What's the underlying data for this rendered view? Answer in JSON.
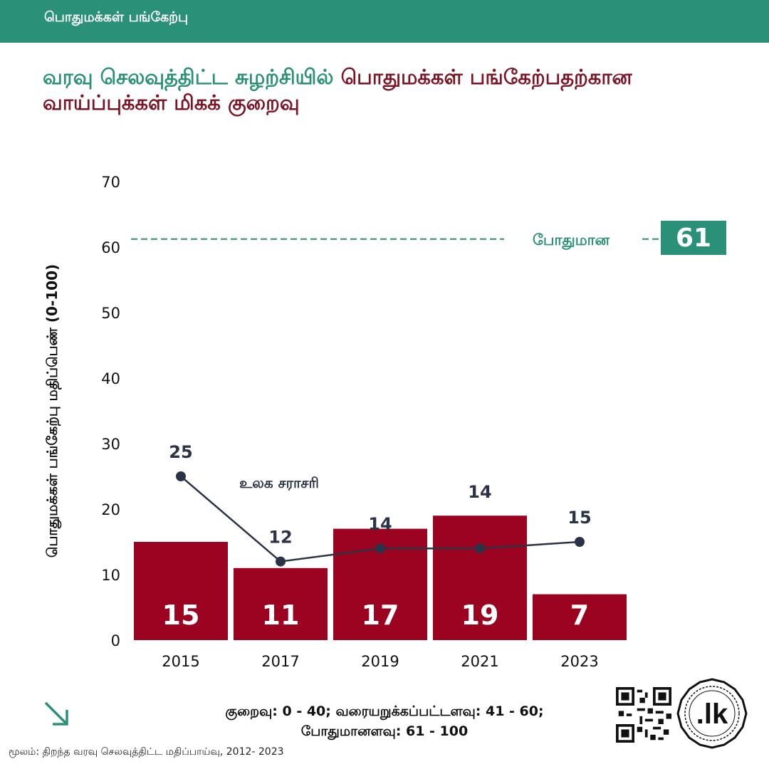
{
  "header": {
    "label": "பொதுமக்கள் பங்கேற்பு"
  },
  "title": {
    "part1": "வரவு செலவுத்திட்ட சுழற்சியில்",
    "part2": "பொதுமக்கள் பங்கேற்பதற்கான வாய்ப்புக்கள் மிகக் குறைவு"
  },
  "colors": {
    "brand_green": "#2a9077",
    "bar_red": "#9b0320",
    "line_navy": "#2b3346",
    "title_dark_red": "#7b1424"
  },
  "chart_data": {
    "type": "bar",
    "ylabel": "பொதுமக்கள் பங்கேற்பு மதிப்பெண் (0-100)",
    "ylim": [
      0,
      70
    ],
    "yticks": [
      0,
      10,
      20,
      30,
      40,
      50,
      60,
      70
    ],
    "categories": [
      "2015",
      "2017",
      "2019",
      "2021",
      "2023"
    ],
    "series": [
      {
        "values": [
          15,
          11,
          17,
          19,
          7
        ]
      },
      {
        "name": "உலக சராசரி",
        "type": "line",
        "values": [
          25,
          12,
          14,
          14,
          15
        ]
      }
    ],
    "reference_line": {
      "label": "போதுமான",
      "value": 61
    },
    "grid": false,
    "legend": "none"
  },
  "footer": {
    "legend_line1": "குறைவு: 0 - 40; வரையறுக்கப்பட்டளவு: 41 - 60;",
    "legend_line2": "போதுமானளவு: 61 - 100",
    "source": "மூலம்: திறந்த வரவு செலவுத்திட்ட மதிப்பாய்வு, 2012- 2023",
    "arrow_icon": "arrow-down-right-icon",
    "qr_icon": "qr-code-icon",
    "logo_text": ".lk"
  }
}
